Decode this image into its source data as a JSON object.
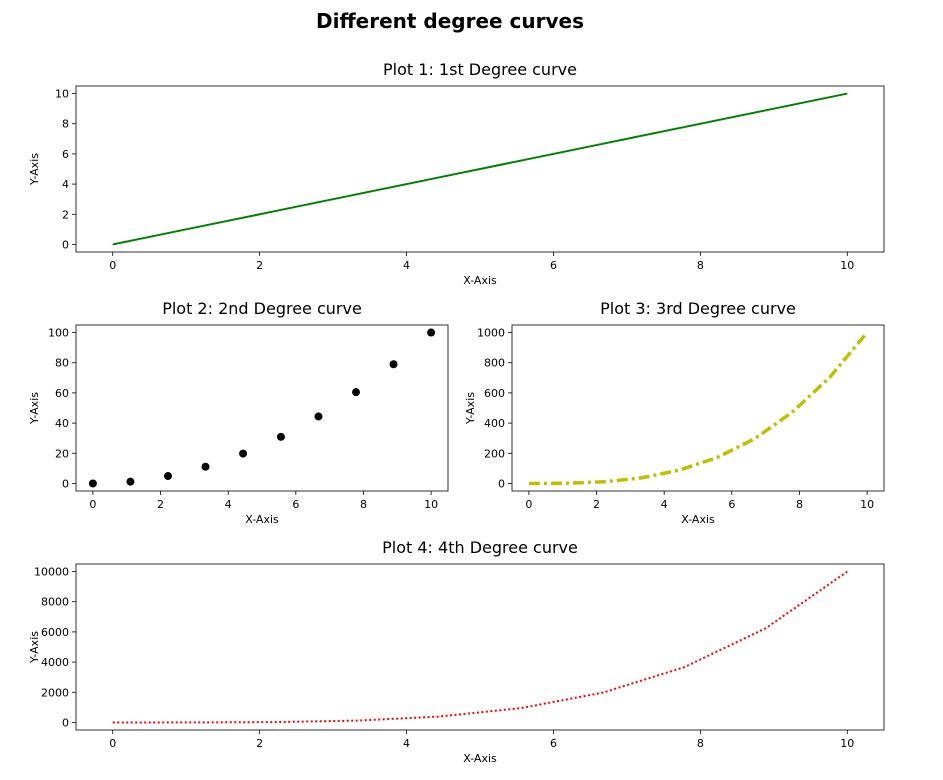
{
  "figure": {
    "suptitle": "Different degree curves"
  },
  "chart_data": [
    {
      "type": "line",
      "title": "Plot 1: 1st Degree curve",
      "xlabel": "X-Axis",
      "ylabel": "Y-Axis",
      "xlim": [
        -0.5,
        10.5
      ],
      "ylim": [
        -0.5,
        10.5
      ],
      "xticks": [
        0,
        2,
        4,
        6,
        8,
        10
      ],
      "yticks": [
        0,
        2,
        4,
        6,
        8,
        10
      ],
      "style": "solid",
      "color": "#008000",
      "x": [
        0,
        1.11,
        2.22,
        3.33,
        4.44,
        5.56,
        6.67,
        7.78,
        8.89,
        10
      ],
      "y": [
        0,
        1.11,
        2.22,
        3.33,
        4.44,
        5.56,
        6.67,
        7.78,
        8.89,
        10
      ]
    },
    {
      "type": "scatter",
      "title": "Plot 2: 2nd Degree curve",
      "xlabel": "X-Axis",
      "ylabel": "Y-Axis",
      "xlim": [
        -0.5,
        10.5
      ],
      "ylim": [
        -5,
        105
      ],
      "xticks": [
        0,
        2,
        4,
        6,
        8,
        10
      ],
      "yticks": [
        0,
        20,
        40,
        60,
        80,
        100
      ],
      "style": "markers",
      "color": "#000000",
      "x": [
        0,
        1.11,
        2.22,
        3.33,
        4.44,
        5.56,
        6.67,
        7.78,
        8.89,
        10
      ],
      "y": [
        0,
        1.2,
        4.9,
        11.1,
        19.8,
        30.9,
        44.4,
        60.5,
        79,
        100
      ]
    },
    {
      "type": "line",
      "title": "Plot 3: 3rd Degree curve",
      "xlabel": "X-Axis",
      "ylabel": "Y-Axis",
      "xlim": [
        -0.5,
        10.5
      ],
      "ylim": [
        -50,
        1050
      ],
      "xticks": [
        0,
        2,
        4,
        6,
        8,
        10
      ],
      "yticks": [
        0,
        200,
        400,
        600,
        800,
        1000
      ],
      "style": "dashdot",
      "color": "#bfbf00",
      "x": [
        0,
        1.11,
        2.22,
        3.33,
        4.44,
        5.56,
        6.67,
        7.78,
        8.89,
        10
      ],
      "y": [
        0,
        1.4,
        11,
        37,
        88,
        171,
        296,
        471,
        702,
        1000
      ]
    },
    {
      "type": "line",
      "title": "Plot 4: 4th Degree curve",
      "xlabel": "X-Axis",
      "ylabel": "Y-Axis",
      "xlim": [
        -0.5,
        10.5
      ],
      "ylim": [
        -500,
        10500
      ],
      "xticks": [
        0,
        2,
        4,
        6,
        8,
        10
      ],
      "yticks": [
        0,
        2000,
        4000,
        6000,
        8000,
        10000
      ],
      "style": "dotted",
      "color": "#ff0000",
      "x": [
        0,
        1.11,
        2.22,
        3.33,
        4.44,
        5.56,
        6.67,
        7.78,
        8.89,
        10
      ],
      "y": [
        0,
        1.5,
        24,
        123,
        390,
        953,
        1975,
        3660,
        6243,
        10000
      ]
    }
  ]
}
